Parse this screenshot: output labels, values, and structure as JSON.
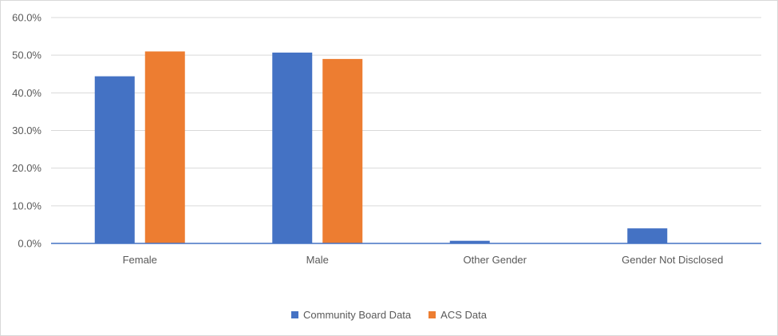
{
  "chart_data": {
    "type": "bar",
    "categories": [
      "Female",
      "Male",
      "Other Gender",
      "Gender Not Disclosed"
    ],
    "series": [
      {
        "name": "Community Board Data",
        "values": [
          44.4,
          50.7,
          0.7,
          4.0
        ],
        "color": "#4472c4"
      },
      {
        "name": "ACS Data",
        "values": [
          51.0,
          49.0,
          0.0,
          0.0
        ],
        "color": "#ed7d31"
      }
    ],
    "yticks": [
      "0.0%",
      "10.0%",
      "20.0%",
      "30.0%",
      "40.0%",
      "50.0%",
      "60.0%"
    ],
    "ylim": [
      0,
      60
    ],
    "title": "",
    "xlabel": "",
    "ylabel": "",
    "grid": true,
    "legend_position": "bottom"
  }
}
